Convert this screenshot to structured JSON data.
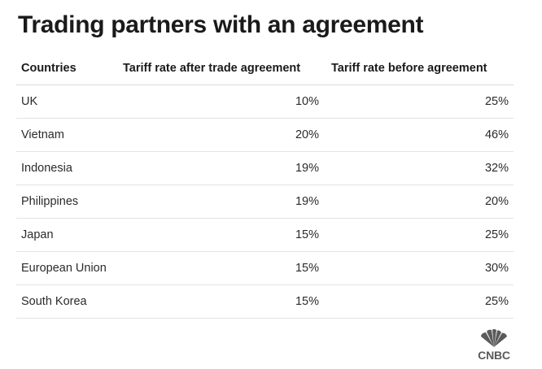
{
  "title": "Trading partners with an agreement",
  "chart_data": {
    "type": "table",
    "columns": [
      "Countries",
      "Tariff rate after trade agreement",
      "Tariff rate before agreement"
    ],
    "rows": [
      {
        "country": "UK",
        "after": "10%",
        "before": "25%"
      },
      {
        "country": "Vietnam",
        "after": "20%",
        "before": "46%"
      },
      {
        "country": "Indonesia",
        "after": "19%",
        "before": "32%"
      },
      {
        "country": "Philippines",
        "after": "19%",
        "before": "20%"
      },
      {
        "country": "Japan",
        "after": "15%",
        "before": "25%"
      },
      {
        "country": "European Union",
        "after": "15%",
        "before": "30%"
      },
      {
        "country": "South Korea",
        "after": "15%",
        "before": "25%"
      }
    ]
  },
  "logo": {
    "icon": "cnbc-peacock-icon",
    "text": "CNBC",
    "color": "#5a5a5a"
  },
  "colors": {
    "row_divider": "#e3e3e3",
    "text": "#222222"
  }
}
